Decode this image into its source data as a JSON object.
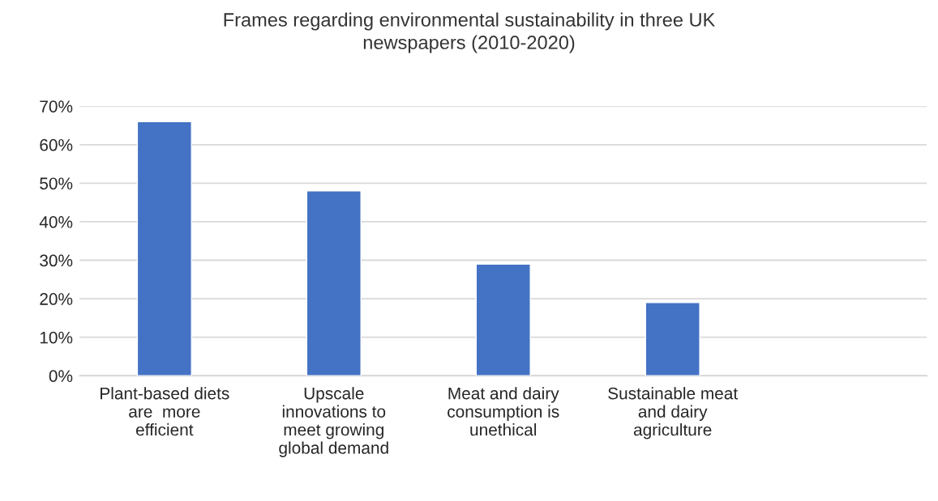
{
  "chart_data": {
    "type": "bar",
    "title": "Frames regarding environmental sustainability in three UK\nnewspapers (2010-2020)",
    "categories": [
      "Plant-based diets\nare  more\nefficient",
      "Upscale\ninnovations to\nmeet growing\nglobal demand",
      "Meat and dairy\nconsumption is\nunethical",
      "Sustainable meat\nand dairy\nagriculture",
      null
    ],
    "values": [
      66,
      48,
      29,
      19,
      null
    ],
    "color": "#4472c4",
    "ylim": [
      0,
      70
    ],
    "yticks": [
      {
        "value": 0,
        "label": "0%"
      },
      {
        "value": 10,
        "label": "10%"
      },
      {
        "value": 20,
        "label": "20%"
      },
      {
        "value": 30,
        "label": "30%"
      },
      {
        "value": 40,
        "label": "40%"
      },
      {
        "value": 50,
        "label": "50%"
      },
      {
        "value": 60,
        "label": "60%"
      },
      {
        "value": 70,
        "label": "70%"
      }
    ],
    "grid": "y",
    "legend": false
  }
}
